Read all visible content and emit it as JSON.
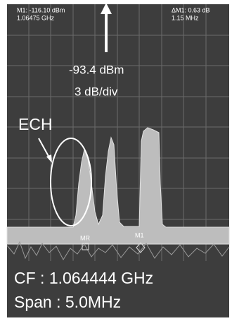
{
  "marker_readout": {
    "level": "M1: -116.10 dBm",
    "frequency": "1.06475 GHz"
  },
  "delta_readout": {
    "level": "ΔM1: 0.63 dB",
    "frequency": "1.15 MHz"
  },
  "reference": {
    "level": "-93.4 dBm",
    "scale": "3 dB/div"
  },
  "annotation": {
    "label": "ECH"
  },
  "markers": [
    {
      "label": "MR"
    },
    {
      "label": "M1"
    }
  ],
  "footer": {
    "center_frequency": "CF : 1.064444 GHz",
    "span": "Span : 5.0MHz"
  }
}
